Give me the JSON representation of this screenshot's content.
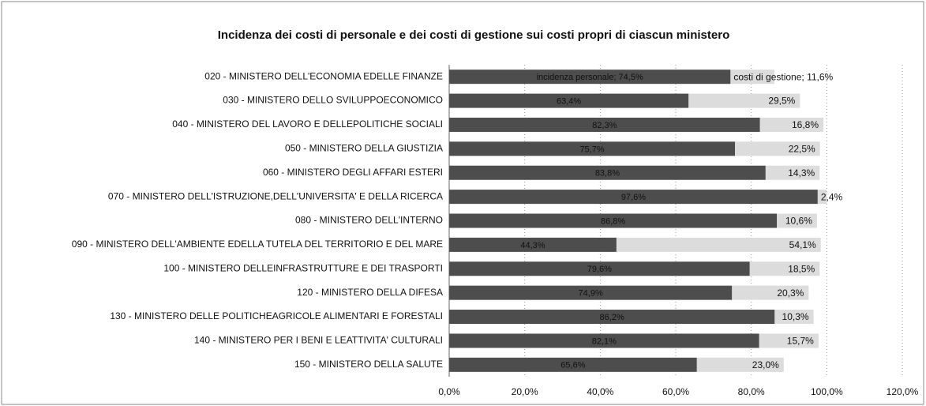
{
  "chart_data": {
    "type": "stacked-bar-horizontal",
    "title": "Incidenza dei costi di personale e dei costi di gestione sui costi propri di ciascun ministero",
    "categories": [
      "020 - MINISTERO DELL'ECONOMIA EDELLE FINANZE",
      "030 - MINISTERO DELLO SVILUPPOECONOMICO",
      "040 - MINISTERO DEL LAVORO E DELLEPOLITICHE SOCIALI",
      "050 - MINISTERO DELLA GIUSTIZIA",
      "060 - MINISTERO DEGLI AFFARI ESTERI",
      "070 - MINISTERO DELL'ISTRUZIONE,DELL'UNIVERSITA' E DELLA RICERCA",
      "080 - MINISTERO DELL'INTERNO",
      "090 - MINISTERO DELL'AMBIENTE EDELLA TUTELA DEL TERRITORIO E DEL MARE",
      "100 - MINISTERO DELLEINFRASTRUTTURE E DEI TRASPORTI",
      "120 - MINISTERO DELLA DIFESA",
      "130 - MINISTERO DELLE POLITICHEAGRICOLE ALIMENTARI E FORESTALI",
      "140 - MINISTERO PER I BENI E LEATTIVITA' CULTURALI",
      "150 - MINISTERO DELLA SALUTE"
    ],
    "series": [
      {
        "color": "#4d4d4d",
        "values": [
          74.5,
          63.4,
          82.3,
          75.7,
          83.8,
          97.6,
          86.8,
          44.3,
          79.6,
          74.9,
          86.2,
          82.1,
          65.6
        ],
        "value_labels": [
          "incidenza personale; 74,5%",
          "63,4%",
          "82,3%",
          "75,7%",
          "83,8%",
          "97,6%",
          "86,8%",
          "44,3%",
          "79,6%",
          "74,9%",
          "86,2%",
          "82,1%",
          "65,6%"
        ]
      },
      {
        "color": "#dcdcdc",
        "values": [
          11.6,
          29.5,
          16.8,
          22.5,
          14.3,
          2.4,
          10.6,
          54.1,
          18.5,
          20.3,
          10.3,
          15.7,
          23.0
        ],
        "value_labels": [
          "costi di gestione; 11,6%",
          "29,5%",
          "16,8%",
          "22,5%",
          "14,3%",
          "2,4%",
          "10,6%",
          "54,1%",
          "18,5%",
          "20,3%",
          "10,3%",
          "15,7%",
          "23,0%"
        ]
      }
    ],
    "xlim": [
      0,
      120
    ],
    "xticks": [
      {
        "value": 0,
        "label": "0,0%"
      },
      {
        "value": 20,
        "label": "20,0%"
      },
      {
        "value": 40,
        "label": "40,0%"
      },
      {
        "value": 60,
        "label": "60,0%"
      },
      {
        "value": 80,
        "label": "80,0%"
      },
      {
        "value": 100,
        "label": "100,0%"
      },
      {
        "value": 120,
        "label": "120,0%"
      }
    ],
    "grid": true
  }
}
